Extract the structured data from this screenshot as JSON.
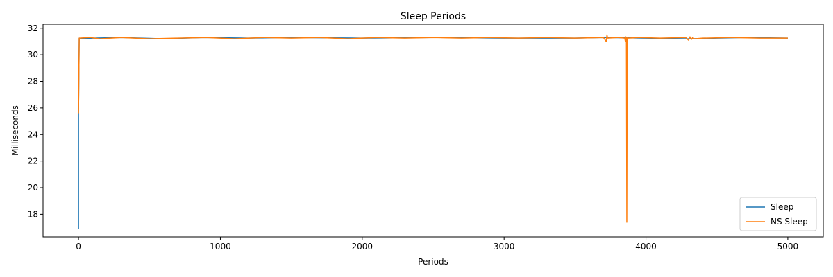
{
  "chart_data": {
    "type": "line",
    "title": "Sleep Periods",
    "xlabel": "Periods",
    "ylabel": "Milliseconds",
    "xlim": [
      -250,
      5250
    ],
    "ylim": [
      16.3,
      32.3
    ],
    "xticks": [
      0,
      1000,
      2000,
      3000,
      4000,
      5000
    ],
    "yticks": [
      18,
      20,
      22,
      24,
      26,
      28,
      30,
      32
    ],
    "grid": false,
    "legend": "bottom-right",
    "series": [
      {
        "name": "Sleep",
        "color": "#1f77b4",
        "points": [
          [
            0,
            16.9
          ],
          [
            0,
            25.6
          ],
          [
            5,
            31.25
          ],
          [
            20,
            31.2
          ],
          [
            100,
            31.25
          ],
          [
            300,
            31.3
          ],
          [
            600,
            31.2
          ],
          [
            880,
            31.3
          ],
          [
            1200,
            31.25
          ],
          [
            1500,
            31.3
          ],
          [
            2000,
            31.25
          ],
          [
            2500,
            31.3
          ],
          [
            3000,
            31.25
          ],
          [
            3500,
            31.25
          ],
          [
            3700,
            31.3
          ],
          [
            4000,
            31.25
          ],
          [
            4300,
            31.2
          ],
          [
            4700,
            31.3
          ],
          [
            5000,
            31.25
          ]
        ]
      },
      {
        "name": "NS Sleep",
        "color": "#ff7f0e",
        "points": [
          [
            0,
            25.6
          ],
          [
            5,
            31.25
          ],
          [
            80,
            31.3
          ],
          [
            150,
            31.2
          ],
          [
            300,
            31.3
          ],
          [
            500,
            31.2
          ],
          [
            700,
            31.25
          ],
          [
            900,
            31.3
          ],
          [
            1100,
            31.2
          ],
          [
            1300,
            31.3
          ],
          [
            1500,
            31.25
          ],
          [
            1700,
            31.3
          ],
          [
            1900,
            31.2
          ],
          [
            2100,
            31.3
          ],
          [
            2300,
            31.25
          ],
          [
            2500,
            31.3
          ],
          [
            2700,
            31.25
          ],
          [
            2900,
            31.3
          ],
          [
            3100,
            31.25
          ],
          [
            3300,
            31.3
          ],
          [
            3500,
            31.25
          ],
          [
            3700,
            31.3
          ],
          [
            3720,
            31.0
          ],
          [
            3725,
            31.5
          ],
          [
            3730,
            31.25
          ],
          [
            3800,
            31.3
          ],
          [
            3850,
            31.25
          ],
          [
            3855,
            31.0
          ],
          [
            3858,
            31.35
          ],
          [
            3862,
            31.2
          ],
          [
            3865,
            17.4
          ],
          [
            3868,
            31.3
          ],
          [
            3875,
            31.25
          ],
          [
            3950,
            31.3
          ],
          [
            4100,
            31.25
          ],
          [
            4280,
            31.3
          ],
          [
            4300,
            31.1
          ],
          [
            4310,
            31.35
          ],
          [
            4320,
            31.15
          ],
          [
            4330,
            31.3
          ],
          [
            4340,
            31.2
          ],
          [
            4400,
            31.25
          ],
          [
            4600,
            31.3
          ],
          [
            4800,
            31.25
          ],
          [
            5000,
            31.25
          ]
        ]
      }
    ]
  }
}
